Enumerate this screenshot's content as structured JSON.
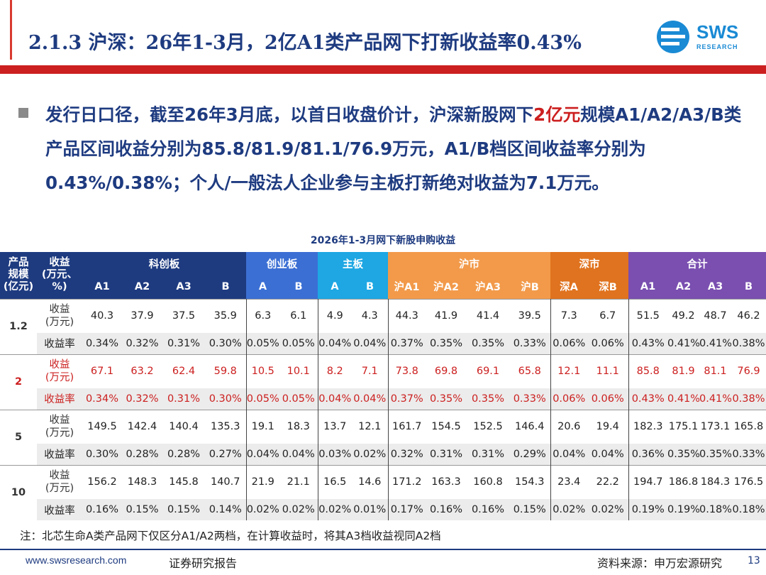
{
  "header": {
    "title": "2.1.3  沪深：26年1-3月，2亿A1类产品网下打新收益率0.43%",
    "logo_text": "SWS",
    "logo_sub": "RESEARCH"
  },
  "bullet": {
    "part1": "发行日口径，截至26年3月底，以首日收盘价计，沪深新股网下",
    "highlight": "2亿元",
    "part2": "规模A1/A2/A3/B类产品区间收益分别为85.8/81.9/81.1/76.9万元，A1/B档区间收益率分别为0.43%/0.38%；个人/一般法人企业参与主板打新绝对收益为7.1万元。"
  },
  "table": {
    "title": "2026年1-3月网下新股申购收益",
    "corner1": [
      "产品",
      "规模",
      "(亿元)"
    ],
    "corner2": [
      "收益",
      "(万元、",
      "%)"
    ],
    "groups": [
      "科创板",
      "创业板",
      "主板",
      "沪市",
      "深市",
      "合计"
    ],
    "subheaders": [
      "A1",
      "A2",
      "A3",
      "B",
      "A",
      "B",
      "A",
      "B",
      "沪A1",
      "沪A2",
      "沪A3",
      "沪B",
      "深A",
      "深B",
      "A1",
      "A2",
      "A3",
      "B"
    ],
    "value_label": [
      "收益",
      "(万元)"
    ],
    "rate_label": "收益率",
    "rows": [
      {
        "size": "1.2",
        "values": [
          "40.3",
          "37.9",
          "37.5",
          "35.9",
          "6.3",
          "6.1",
          "4.9",
          "4.3",
          "44.3",
          "41.9",
          "41.4",
          "39.5",
          "7.3",
          "6.7",
          "51.5",
          "49.2",
          "48.7",
          "46.2"
        ],
        "rates": [
          "0.34%",
          "0.32%",
          "0.31%",
          "0.30%",
          "0.05%",
          "0.05%",
          "0.04%",
          "0.04%",
          "0.37%",
          "0.35%",
          "0.35%",
          "0.33%",
          "0.06%",
          "0.06%",
          "0.43%",
          "0.41%",
          "0.41%",
          "0.38%"
        ]
      },
      {
        "size": "2",
        "values": [
          "67.1",
          "63.2",
          "62.4",
          "59.8",
          "10.5",
          "10.1",
          "8.2",
          "7.1",
          "73.8",
          "69.8",
          "69.1",
          "65.8",
          "12.1",
          "11.1",
          "85.8",
          "81.9",
          "81.1",
          "76.9"
        ],
        "rates": [
          "0.34%",
          "0.32%",
          "0.31%",
          "0.30%",
          "0.05%",
          "0.05%",
          "0.04%",
          "0.04%",
          "0.37%",
          "0.35%",
          "0.35%",
          "0.33%",
          "0.06%",
          "0.06%",
          "0.43%",
          "0.41%",
          "0.41%",
          "0.38%"
        ]
      },
      {
        "size": "5",
        "values": [
          "149.5",
          "142.4",
          "140.4",
          "135.3",
          "19.1",
          "18.3",
          "13.7",
          "12.1",
          "161.7",
          "154.5",
          "152.5",
          "146.4",
          "20.6",
          "19.4",
          "182.3",
          "175.1",
          "173.1",
          "165.8"
        ],
        "rates": [
          "0.30%",
          "0.28%",
          "0.28%",
          "0.27%",
          "0.04%",
          "0.04%",
          "0.03%",
          "0.02%",
          "0.32%",
          "0.31%",
          "0.31%",
          "0.29%",
          "0.04%",
          "0.04%",
          "0.36%",
          "0.35%",
          "0.35%",
          "0.33%"
        ]
      },
      {
        "size": "10",
        "values": [
          "156.2",
          "148.3",
          "145.8",
          "140.7",
          "21.9",
          "21.1",
          "16.5",
          "14.6",
          "171.2",
          "163.3",
          "160.8",
          "154.3",
          "23.4",
          "22.2",
          "194.7",
          "186.8",
          "184.3",
          "176.5"
        ],
        "rates": [
          "0.16%",
          "0.15%",
          "0.15%",
          "0.14%",
          "0.02%",
          "0.02%",
          "0.02%",
          "0.01%",
          "0.17%",
          "0.16%",
          "0.16%",
          "0.15%",
          "0.02%",
          "0.02%",
          "0.19%",
          "0.19%",
          "0.18%",
          "0.18%"
        ]
      }
    ]
  },
  "note": "注：北芯生命A类产品网下仅区分A1/A2两档，在计算收益时，将其A3档收益视同A2档",
  "footer": {
    "url": "www.swsresearch.com",
    "report": "证券研究报告",
    "source": "资料来源：申万宏源研究",
    "page": "13"
  },
  "colors": {
    "title_blue": "#1e3b80",
    "accent_red": "#cc1f1f",
    "kechuang": "#1e3b80",
    "chuangye": "#3b6fd4",
    "zhuban": "#1ea7e3",
    "hushi": "#f29a4a",
    "shenshi": "#e0731f",
    "heji": "#7a4fb0"
  }
}
